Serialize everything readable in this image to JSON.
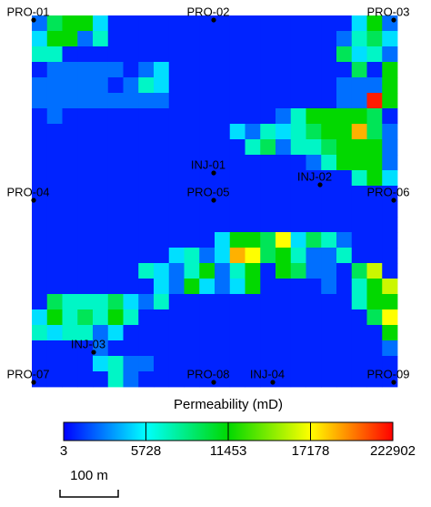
{
  "chart_data": {
    "type": "heatmap",
    "colorbar_title": "Permeability (mD)",
    "colorbar_ticks": [
      3,
      5728,
      11453,
      17178,
      222902
    ],
    "colors": [
      "#0000ff",
      "#00ffff",
      "#00d800",
      "#ffff00",
      "#ff0000"
    ],
    "z": [
      [
        2500,
        9500,
        11500,
        11500,
        5000,
        800,
        800,
        800,
        800,
        800,
        800,
        800,
        800,
        800,
        800,
        800,
        800,
        800,
        800,
        800,
        800,
        5000,
        11500,
        2500
      ],
      [
        5000,
        11500,
        11500,
        2500,
        7000,
        800,
        800,
        800,
        800,
        800,
        800,
        800,
        800,
        800,
        800,
        800,
        800,
        800,
        800,
        800,
        2500,
        7000,
        9500,
        5000
      ],
      [
        7000,
        7000,
        800,
        800,
        800,
        800,
        800,
        800,
        800,
        800,
        800,
        800,
        800,
        800,
        800,
        800,
        800,
        800,
        800,
        800,
        9500,
        5000,
        7000,
        2500
      ],
      [
        800,
        2500,
        2500,
        2500,
        2500,
        2500,
        800,
        2500,
        5000,
        800,
        800,
        800,
        800,
        800,
        800,
        800,
        800,
        800,
        800,
        800,
        800,
        9500,
        800,
        11500
      ],
      [
        2500,
        2500,
        2500,
        2500,
        2500,
        800,
        2500,
        7000,
        5000,
        800,
        800,
        800,
        800,
        800,
        800,
        800,
        800,
        800,
        800,
        800,
        2500,
        2500,
        2500,
        11500
      ],
      [
        2500,
        2500,
        2500,
        2500,
        2500,
        2500,
        2500,
        2500,
        2500,
        800,
        800,
        800,
        800,
        800,
        800,
        800,
        800,
        800,
        800,
        800,
        2500,
        2500,
        200000,
        11500
      ],
      [
        800,
        2500,
        800,
        800,
        800,
        800,
        800,
        800,
        800,
        800,
        800,
        800,
        800,
        800,
        800,
        800,
        2500,
        7000,
        11500,
        11500,
        11500,
        11500,
        9500,
        800
      ],
      [
        800,
        800,
        800,
        800,
        800,
        800,
        800,
        800,
        800,
        800,
        800,
        800,
        800,
        5000,
        2500,
        7000,
        5000,
        7000,
        9500,
        11500,
        11500,
        80000,
        9500,
        2500
      ],
      [
        800,
        800,
        800,
        800,
        800,
        800,
        800,
        800,
        800,
        800,
        800,
        800,
        800,
        800,
        7000,
        9500,
        2500,
        7000,
        7000,
        9500,
        11500,
        11500,
        11500,
        2500
      ],
      [
        800,
        800,
        800,
        800,
        800,
        800,
        800,
        800,
        800,
        800,
        800,
        800,
        800,
        800,
        800,
        800,
        800,
        800,
        2500,
        7000,
        11500,
        11500,
        11500,
        2500
      ],
      [
        800,
        800,
        800,
        800,
        800,
        800,
        800,
        800,
        800,
        800,
        800,
        800,
        800,
        800,
        800,
        800,
        800,
        800,
        800,
        800,
        800,
        7000,
        11500,
        5000
      ],
      [
        800,
        800,
        800,
        800,
        800,
        800,
        800,
        800,
        800,
        800,
        800,
        800,
        800,
        800,
        800,
        800,
        800,
        800,
        800,
        800,
        800,
        800,
        800,
        800
      ],
      [
        800,
        800,
        800,
        800,
        800,
        800,
        800,
        800,
        800,
        800,
        800,
        800,
        800,
        800,
        800,
        800,
        800,
        800,
        800,
        800,
        800,
        800,
        800,
        800
      ],
      [
        800,
        800,
        800,
        800,
        800,
        800,
        800,
        800,
        800,
        800,
        800,
        800,
        800,
        800,
        800,
        800,
        800,
        800,
        800,
        800,
        800,
        800,
        800,
        800
      ],
      [
        800,
        800,
        800,
        800,
        800,
        800,
        800,
        800,
        800,
        800,
        800,
        800,
        5000,
        11500,
        11500,
        9500,
        17500,
        5000,
        9500,
        7000,
        2500,
        800,
        800,
        800
      ],
      [
        800,
        800,
        800,
        800,
        800,
        800,
        800,
        800,
        800,
        5000,
        7000,
        2500,
        5000,
        80000,
        17500,
        9500,
        11500,
        7000,
        2500,
        2500,
        7000,
        800,
        800,
        800
      ],
      [
        800,
        800,
        800,
        800,
        800,
        800,
        800,
        7000,
        5000,
        2500,
        7000,
        11500,
        2500,
        7000,
        11500,
        800,
        11500,
        9500,
        2500,
        2500,
        800,
        9500,
        16000,
        800
      ],
      [
        800,
        800,
        800,
        800,
        800,
        800,
        800,
        800,
        5000,
        2500,
        11500,
        5000,
        2500,
        5000,
        11500,
        800,
        800,
        800,
        800,
        2500,
        800,
        7000,
        11500,
        16000
      ],
      [
        800,
        9500,
        7000,
        7000,
        7000,
        9500,
        5000,
        2500,
        7000,
        800,
        800,
        800,
        800,
        800,
        800,
        800,
        800,
        800,
        800,
        800,
        800,
        7000,
        11500,
        11500
      ],
      [
        5000,
        11500,
        7000,
        9500,
        7000,
        11500,
        7000,
        800,
        800,
        800,
        800,
        800,
        800,
        800,
        800,
        800,
        800,
        800,
        800,
        800,
        800,
        800,
        9500,
        17500
      ],
      [
        7000,
        5000,
        7000,
        7000,
        2500,
        5000,
        800,
        800,
        800,
        800,
        800,
        800,
        800,
        800,
        800,
        800,
        800,
        800,
        800,
        800,
        800,
        800,
        800,
        11500
      ],
      [
        800,
        800,
        800,
        800,
        2500,
        800,
        800,
        800,
        800,
        800,
        800,
        800,
        800,
        800,
        800,
        800,
        800,
        800,
        800,
        800,
        800,
        800,
        800,
        2500
      ],
      [
        800,
        800,
        800,
        800,
        5000,
        7000,
        2500,
        2500,
        800,
        800,
        800,
        800,
        800,
        800,
        800,
        800,
        800,
        800,
        800,
        800,
        800,
        800,
        800,
        800
      ],
      [
        800,
        800,
        800,
        800,
        800,
        7000,
        2500,
        800,
        800,
        800,
        800,
        800,
        800,
        800,
        800,
        800,
        800,
        800,
        800,
        800,
        800,
        800,
        800,
        800
      ]
    ],
    "wells": [
      "PRO-01",
      "PRO-02",
      "PRO-03",
      "PRO-04",
      "PRO-05",
      "PRO-06",
      "PRO-07",
      "PRO-08",
      "PRO-09",
      "INJ-01",
      "INJ-02",
      "INJ-03",
      "INJ-04"
    ],
    "scale_bar": "100 m"
  }
}
